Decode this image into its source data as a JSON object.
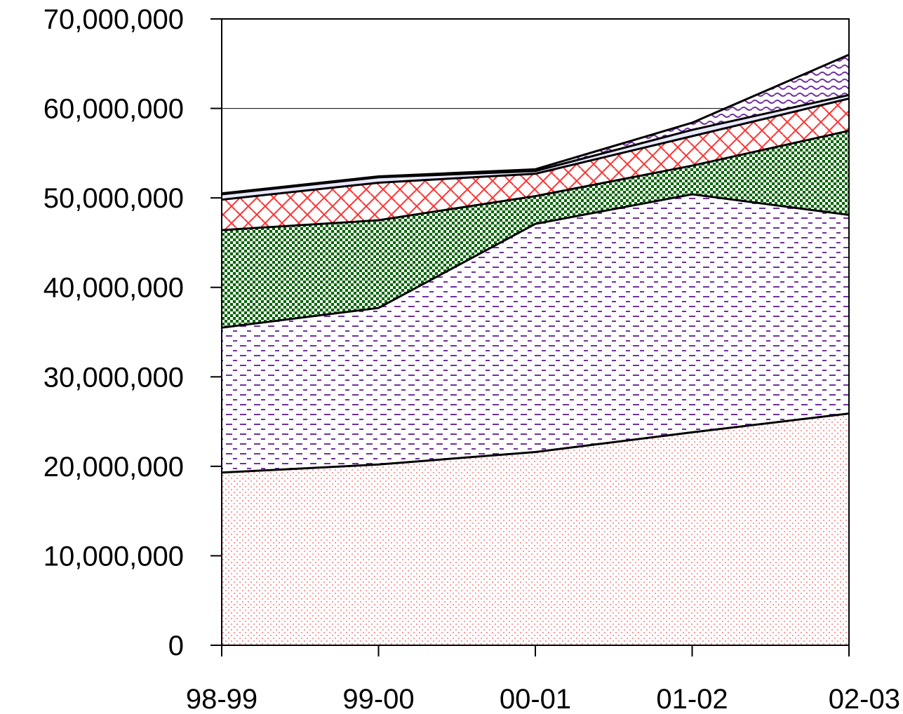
{
  "chart_data": {
    "type": "area",
    "stacked": true,
    "title": "",
    "xlabel": "",
    "ylabel": "",
    "categories": [
      "98-99",
      "99-00",
      "00-01",
      "01-02",
      "02-03"
    ],
    "y_ticks": [
      "0",
      "10,000,000",
      "20,000,000",
      "30,000,000",
      "40,000,000",
      "50,000,000",
      "60,000,000",
      "70,000,000"
    ],
    "ylim": [
      0,
      70000000
    ],
    "grid": "horizontal major lines",
    "legend": "none",
    "series": [
      {
        "values": [
          19300000,
          20200000,
          21600000,
          23800000,
          25900000
        ],
        "color": "#FF9999",
        "pattern": "dots"
      },
      {
        "values": [
          16200000,
          17500000,
          25500000,
          26600000,
          22200000
        ],
        "color": "#7030A0",
        "pattern": "dashes"
      },
      {
        "values": [
          10900000,
          9800000,
          3100000,
          3200000,
          9400000
        ],
        "color": "#006400",
        "pattern": "checker"
      },
      {
        "values": [
          3400000,
          4200000,
          2500000,
          3300000,
          3600000
        ],
        "color": "#FF3333",
        "pattern": "brick"
      },
      {
        "values": [
          600000,
          600000,
          300000,
          700000,
          400000
        ],
        "color": "#6666FF",
        "pattern": "plain"
      },
      {
        "values": [
          100000,
          100000,
          200000,
          800000,
          4500000
        ],
        "color": "#7030A0",
        "pattern": "wave"
      }
    ]
  }
}
